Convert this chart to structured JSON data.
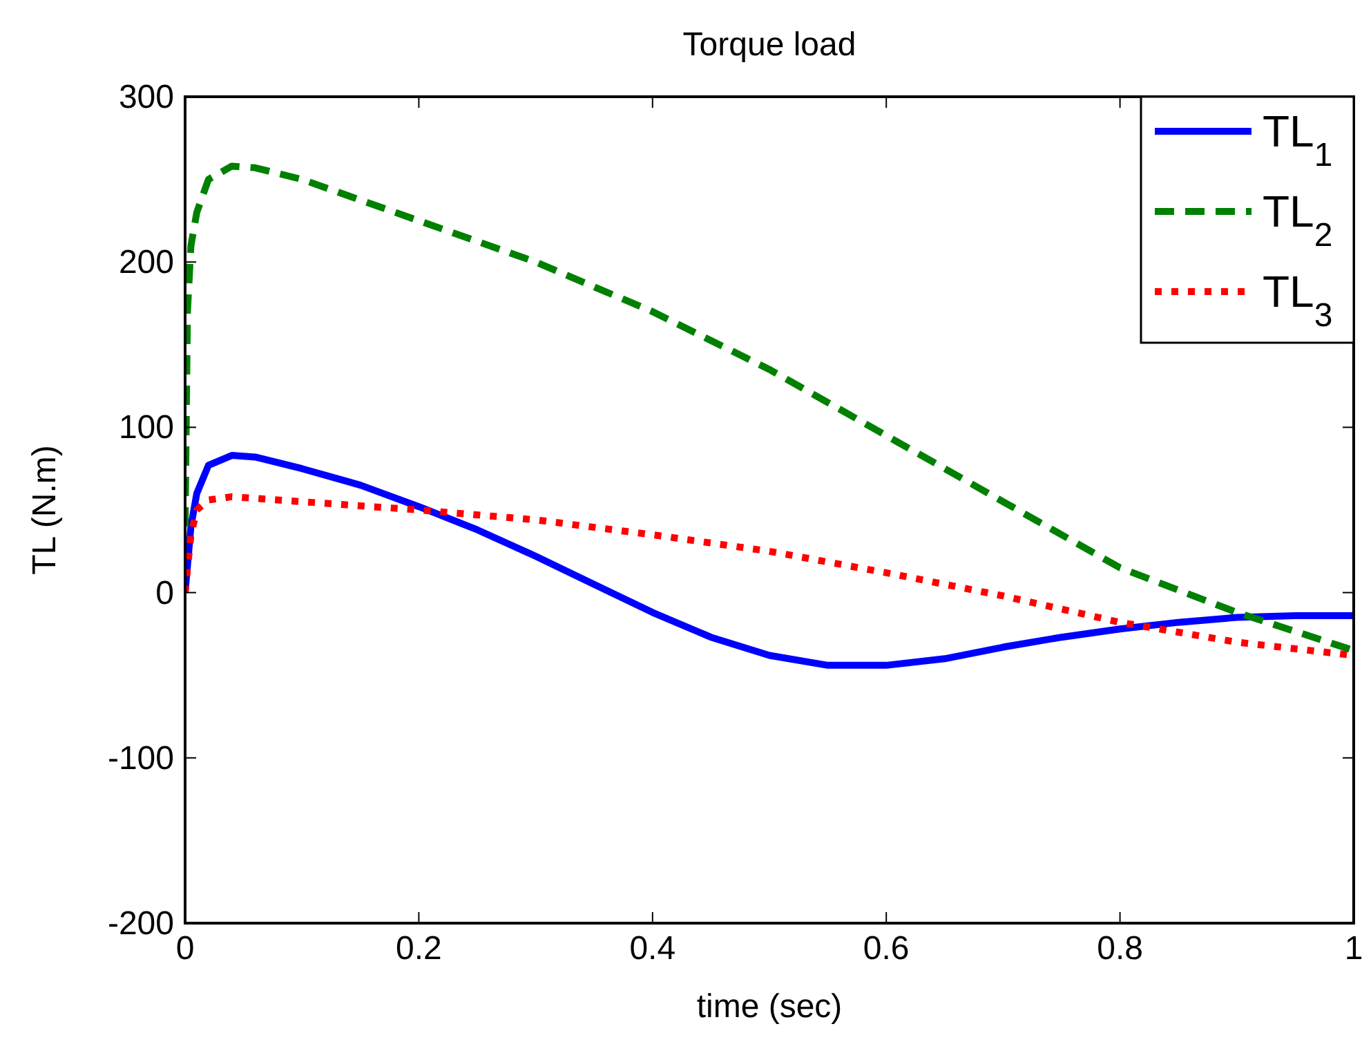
{
  "chart_data": {
    "type": "line",
    "title": "Torque load",
    "xlabel": "time (sec)",
    "ylabel": "TL (N.m)",
    "xlim": [
      0,
      1
    ],
    "xticks": [
      0,
      0.2,
      0.4,
      0.6,
      0.8,
      1
    ],
    "ylim": [
      -200,
      300
    ],
    "yticks": [
      -200,
      -100,
      0,
      100,
      200,
      300
    ],
    "grid": false,
    "legend": "top right",
    "marker": "none",
    "series": [
      {
        "name": "TL$_{1}$",
        "color": "#0000ff",
        "line_style": "solid",
        "x": [
          0,
          0.005,
          0.01,
          0.02,
          0.04,
          0.06,
          0.1,
          0.15,
          0.2,
          0.25,
          0.3,
          0.35,
          0.4,
          0.45,
          0.5,
          0.55,
          0.6,
          0.65,
          0.7,
          0.75,
          0.8,
          0.85,
          0.9,
          0.95,
          1
        ],
        "values": [
          0,
          40,
          60,
          77,
          83,
          82,
          75,
          65,
          52,
          38,
          22,
          5,
          -12,
          -27,
          -38,
          -44,
          -44,
          -40,
          -33,
          -27,
          -22,
          -18,
          -15,
          -14,
          -14
        ]
      },
      {
        "name": "TL$_{2}$",
        "color": "#008000",
        "line_style": "dashed",
        "x": [
          0,
          0.002,
          0.005,
          0.01,
          0.02,
          0.04,
          0.06,
          0.1,
          0.2,
          0.3,
          0.4,
          0.5,
          0.6,
          0.7,
          0.8,
          0.9,
          1
        ],
        "values": [
          40,
          170,
          210,
          230,
          250,
          258,
          257,
          250,
          225,
          200,
          170,
          135,
          95,
          55,
          15,
          -12,
          -35
        ]
      },
      {
        "name": "TL$_{3}$",
        "color": "#ff0000",
        "line_style": "dotted",
        "x": [
          0,
          0.005,
          0.01,
          0.02,
          0.04,
          0.1,
          0.2,
          0.3,
          0.4,
          0.5,
          0.6,
          0.7,
          0.8,
          0.9,
          1
        ],
        "values": [
          0,
          35,
          50,
          56,
          58,
          55,
          50,
          44,
          35,
          25,
          12,
          -2,
          -18,
          -30,
          -38
        ]
      }
    ]
  }
}
